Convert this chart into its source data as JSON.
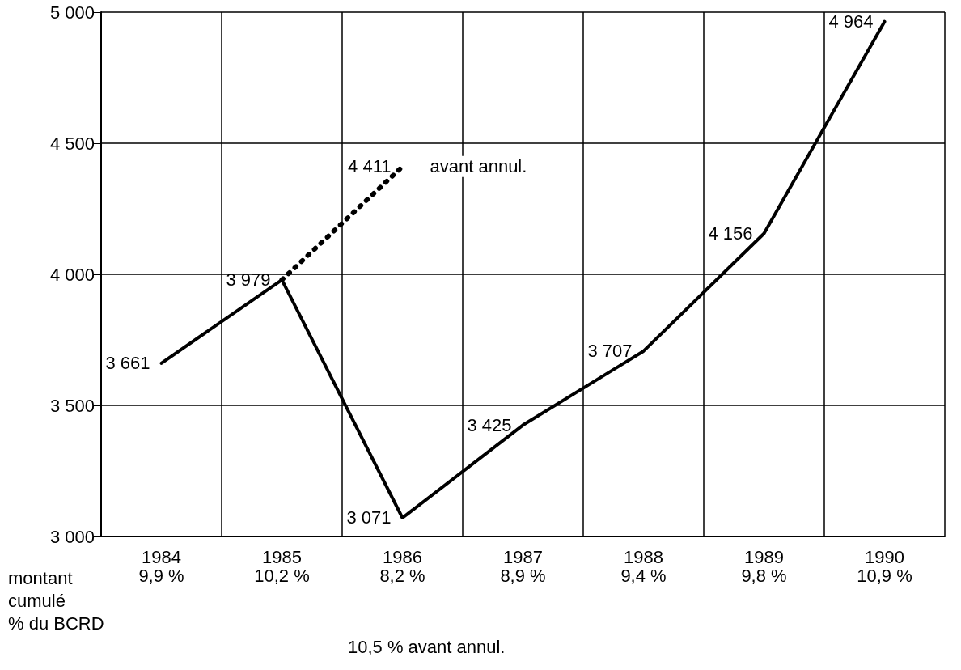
{
  "chart_data": {
    "type": "line",
    "categories": [
      "1984",
      "1985",
      "1986",
      "1987",
      "1988",
      "1989",
      "1990"
    ],
    "series": [
      {
        "color": "#000000",
        "line_style": "solid",
        "values": [
          3661,
          3979,
          3071,
          3425,
          3707,
          4156,
          4964
        ],
        "value_labels": [
          "3 661",
          "3 979",
          "3 071",
          "3 425",
          "3 707",
          "4 156",
          "4 964"
        ]
      },
      {
        "color": "#000000",
        "line_style": "dotted",
        "values": [
          null,
          3979,
          4411,
          null,
          null,
          null,
          null
        ],
        "value_labels": [
          null,
          null,
          "4 411",
          null,
          null,
          null,
          null
        ]
      }
    ],
    "ylim": [
      3000,
      5000
    ],
    "yticks": [
      {
        "value": 3000,
        "label": "3 000"
      },
      {
        "value": 3500,
        "label": "3 500"
      },
      {
        "value": 4000,
        "label": "4 000"
      },
      {
        "value": 4500,
        "label": "4 500"
      },
      {
        "value": 5000,
        "label": "5 000"
      }
    ],
    "grid": true,
    "marker": "none",
    "annotations": [
      {
        "text": "avant annul.",
        "x": "1986",
        "y": 4411
      },
      "9,9 %",
      "10,2 %",
      "8,2 %",
      "8,9 %",
      "9,4 %",
      "9,8 %",
      "10,9 %",
      "montant\ncumulé\n% du BCRD",
      "10,5 % avant annul."
    ]
  }
}
